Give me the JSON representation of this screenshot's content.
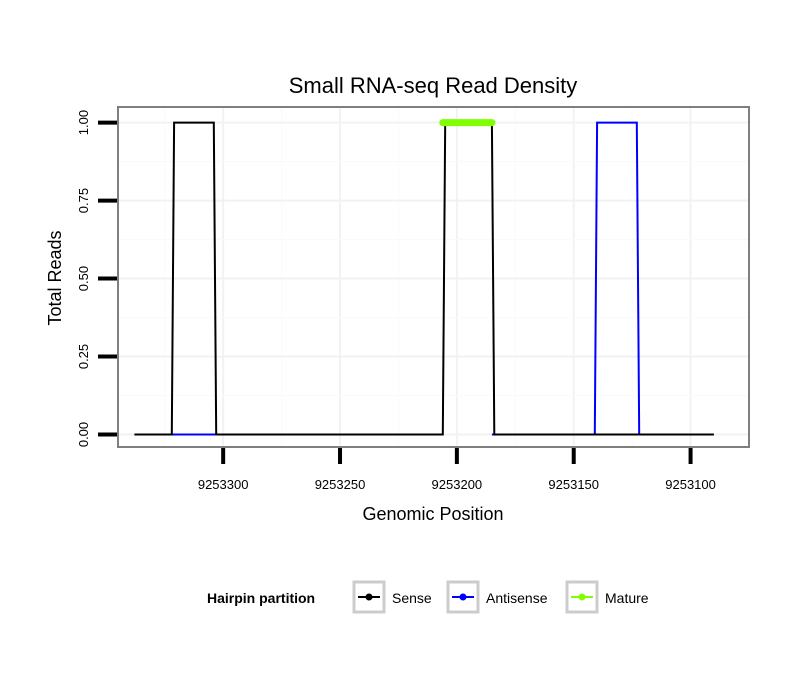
{
  "chart_data": {
    "type": "line",
    "title": "Small RNA-seq Read Density",
    "xlabel": "Genomic Position",
    "ylabel": "Total Reads",
    "xlim": [
      9253345,
      9253075
    ],
    "ylim": [
      -0.04,
      1.05
    ],
    "x_reversed": true,
    "x_ticks": [
      9253300,
      9253250,
      9253200,
      9253150,
      9253100
    ],
    "x_tick_labels": [
      "9253300",
      "9253250",
      "9253200",
      "9253150",
      "9253100"
    ],
    "y_ticks": [
      0,
      0.25,
      0.5,
      0.75,
      1
    ],
    "y_tick_labels": [
      "0.00",
      "0.25",
      "0.50",
      "0.75",
      "1.00"
    ],
    "grid": true,
    "legend_position": "bottom",
    "legend_title": "Hairpin partition",
    "series": [
      {
        "name": "Sense",
        "color": "#000000",
        "x": [
          9253338,
          9253322,
          9253321,
          9253304,
          9253303,
          9253206,
          9253205,
          9253185,
          9253184,
          9253090
        ],
        "values": [
          0,
          0,
          1,
          1,
          0,
          0,
          1,
          1,
          0,
          0
        ]
      },
      {
        "name": "Antisense",
        "color": "#0000ff",
        "x": [
          9253322,
          9253303,
          9253206,
          9253185,
          9253141,
          9253140,
          9253123,
          9253122
        ],
        "values": [
          0,
          0,
          null,
          0,
          0,
          1,
          1,
          0
        ]
      },
      {
        "name": "Mature",
        "color": "#7fff00",
        "x": [
          9253206,
          9253185
        ],
        "values": [
          1,
          1
        ]
      }
    ]
  }
}
